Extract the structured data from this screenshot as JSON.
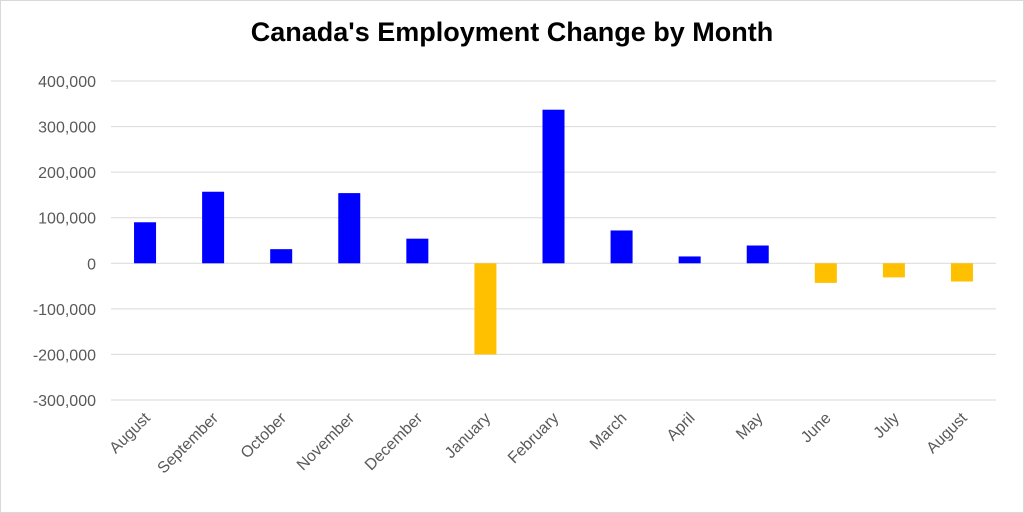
{
  "chart_data": {
    "type": "bar",
    "title": "Canada's Employment Change by Month",
    "categories": [
      "August",
      "September",
      "October",
      "November",
      "December",
      "January",
      "February",
      "March",
      "April",
      "May",
      "June",
      "July",
      "August"
    ],
    "values": [
      90000,
      157000,
      31000,
      154000,
      54000,
      -200000,
      337000,
      72000,
      15000,
      39000,
      -43000,
      -31000,
      -40000
    ],
    "yticks": [
      "400,000",
      "300,000",
      "200,000",
      "100,000",
      "0",
      "-100,000",
      "-200,000",
      "-300,000"
    ],
    "ylim": [
      -300000,
      400000
    ],
    "grid": true,
    "colors": {
      "positive": "#0000ff",
      "negative": "#ffc000",
      "grid": "#d9d9d9"
    }
  }
}
